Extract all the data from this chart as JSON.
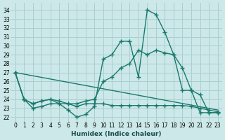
{
  "xlabel": "Humidex (Indice chaleur)",
  "bg_color": "#cce8e8",
  "grid_color": "#aacfcf",
  "line_color": "#1a7a6e",
  "xlim": [
    -0.5,
    23.5
  ],
  "ylim": [
    21.5,
    34.8
  ],
  "yticks": [
    22,
    23,
    24,
    25,
    26,
    27,
    28,
    29,
    30,
    31,
    32,
    33,
    34
  ],
  "xticks": [
    0,
    1,
    2,
    3,
    4,
    5,
    6,
    7,
    8,
    9,
    10,
    11,
    12,
    13,
    14,
    15,
    16,
    17,
    18,
    19,
    20,
    21,
    22,
    23
  ],
  "curve1_x": [
    0,
    1,
    2,
    3,
    4,
    5,
    6,
    7,
    8,
    9,
    10,
    11,
    12,
    13,
    14,
    15,
    16,
    17,
    18,
    19,
    20,
    21,
    22,
    23
  ],
  "curve1_y": [
    27,
    24,
    23,
    23.2,
    23.5,
    23.5,
    22.8,
    22,
    22.3,
    23.2,
    28.5,
    29,
    30.5,
    30.5,
    26.5,
    34,
    33.5,
    31.5,
    29,
    25,
    25,
    22.5,
    22.5,
    22.5
  ],
  "curve2_x": [
    0,
    1,
    2,
    3,
    4,
    5,
    6,
    7,
    8,
    9,
    10,
    11,
    12,
    13,
    14,
    15,
    16,
    17,
    18,
    19,
    20,
    21,
    22,
    23
  ],
  "curve2_y": [
    27,
    24,
    23.5,
    23.8,
    24,
    23.5,
    23.5,
    23.5,
    23.8,
    24,
    26,
    26.5,
    27.5,
    28,
    29.5,
    29,
    29.5,
    29.2,
    29,
    27.5,
    25,
    24.5,
    22.5,
    22.5
  ],
  "line3_x": [
    0,
    23
  ],
  "line3_y": [
    27,
    22.8
  ],
  "curve4_x": [
    0,
    1,
    2,
    3,
    4,
    5,
    6,
    7,
    8,
    9,
    10,
    11,
    12,
    13,
    14,
    15,
    16,
    17,
    18,
    19,
    20,
    21,
    22,
    23
  ],
  "curve4_y": [
    27,
    24,
    23.5,
    23.8,
    24.0,
    23.8,
    23.5,
    23.2,
    23.5,
    23.5,
    23.5,
    23.3,
    23.3,
    23.3,
    23.3,
    23.3,
    23.3,
    23.3,
    23.3,
    23.3,
    23.2,
    23.0,
    22.8,
    22.6
  ]
}
